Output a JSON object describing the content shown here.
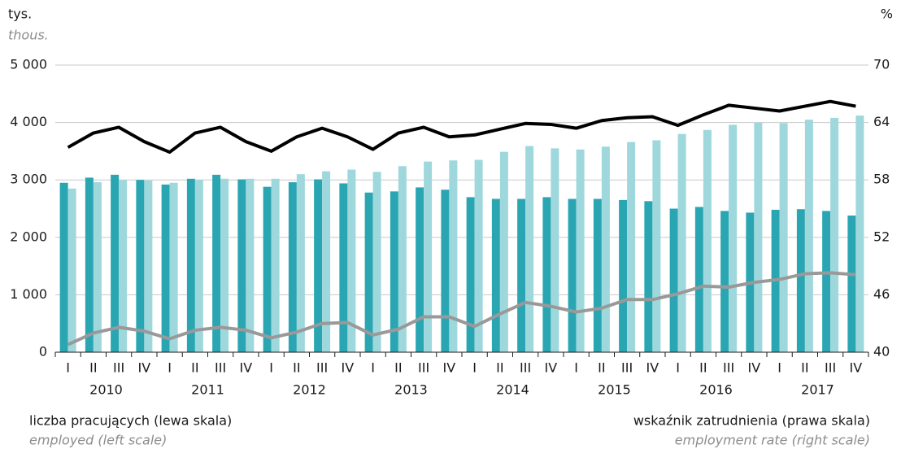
{
  "chart_data": {
    "type": "bar_line",
    "left_unit": "tys.",
    "left_unit_en": "thous.",
    "right_unit": "%",
    "categories": [
      "I",
      "II",
      "III",
      "IV",
      "I",
      "II",
      "III",
      "IV",
      "I",
      "II",
      "III",
      "IV",
      "I",
      "II",
      "III",
      "IV",
      "I",
      "II",
      "III",
      "IV",
      "I",
      "II",
      "III",
      "IV",
      "I",
      "II",
      "III",
      "IV",
      "I",
      "II",
      "III",
      "IV"
    ],
    "years": [
      "2010",
      "2011",
      "2012",
      "2013",
      "2014",
      "2015",
      "2016",
      "2017"
    ],
    "series": [
      {
        "color": "#2aa6b3",
        "values": [
          2950,
          3040,
          3090,
          3000,
          2920,
          3020,
          3090,
          3010,
          2880,
          2960,
          3010,
          2940,
          2780,
          2800,
          2870,
          2830,
          2700,
          2670,
          2670,
          2700,
          2670,
          2670,
          2650,
          2630,
          2500,
          2530,
          2460,
          2430,
          2480,
          2490,
          2460,
          2380
        ]
      },
      {
        "color": "#9fd8dc",
        "values": [
          2850,
          2960,
          3000,
          2990,
          2950,
          3000,
          3020,
          3020,
          3020,
          3100,
          3150,
          3180,
          3140,
          3240,
          3320,
          3340,
          3350,
          3490,
          3590,
          3550,
          3530,
          3580,
          3660,
          3690,
          3800,
          3870,
          3960,
          4000,
          3990,
          4050,
          4080,
          4120
        ]
      },
      {
        "color": "#000000",
        "axis": "y2",
        "values": [
          61.4,
          62.9,
          63.5,
          62.0,
          60.9,
          62.9,
          63.5,
          62.0,
          61.0,
          62.5,
          63.4,
          62.5,
          61.2,
          62.9,
          63.5,
          62.5,
          62.7,
          63.3,
          63.9,
          63.8,
          63.4,
          64.2,
          64.5,
          64.6,
          63.7,
          64.8,
          65.8,
          65.5,
          65.2,
          65.7,
          66.2,
          65.7
        ]
      },
      {
        "color": "#999999",
        "axis": "y2",
        "values": [
          40.8,
          42.0,
          42.6,
          42.2,
          41.4,
          42.3,
          42.6,
          42.3,
          41.5,
          42.1,
          43.0,
          43.1,
          41.8,
          42.4,
          43.7,
          43.7,
          42.7,
          44.0,
          45.2,
          44.8,
          44.2,
          44.6,
          45.5,
          45.5,
          46.1,
          46.9,
          46.8,
          47.3,
          47.6,
          48.2,
          48.3,
          48.1
        ]
      }
    ],
    "ylim": [
      0,
      5000
    ],
    "yticks": [
      0,
      {
        "value": 1000,
        "label": "1 000"
      },
      {
        "value": 2000,
        "label": "2 000"
      },
      {
        "value": 3000,
        "label": "3 000"
      },
      {
        "value": 4000,
        "label": "4 000"
      },
      {
        "value": 5000,
        "label": "5 000"
      }
    ],
    "y2lim": [
      40,
      70
    ],
    "y2ticks": [
      40,
      46,
      52,
      58,
      64,
      70
    ],
    "grid": true,
    "annotations": [
      "liczba pracujących (lewa skala)",
      "employed (left scale)",
      "wskaźnik zatrudnienia (prawa skala)",
      "employment rate (right scale)"
    ]
  }
}
